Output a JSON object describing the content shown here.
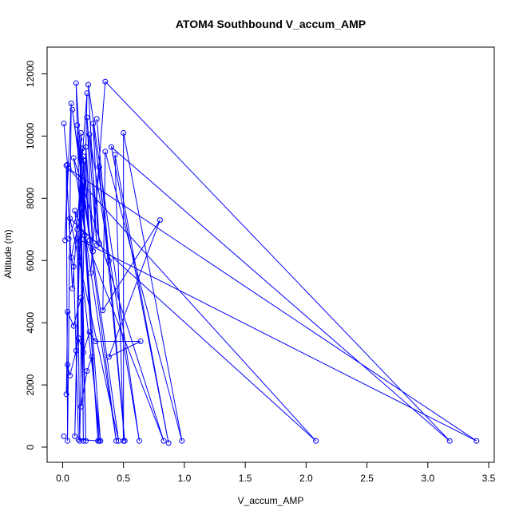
{
  "chart_data": {
    "type": "scatter",
    "title": "ATOM4 Southbound V_accum_AMP",
    "xlabel": "V_accum_AMP",
    "ylabel": "Altitude (m)",
    "xlim": [
      0,
      3.5
    ],
    "ylim": [
      0,
      12000
    ],
    "x_ticks": [
      0,
      0.5,
      1,
      1.5,
      2,
      2.5,
      3,
      3.5
    ],
    "x_tick_labels": [
      "0.0",
      "0.5",
      "1.0",
      "1.5",
      "2.0",
      "2.5",
      "3.0",
      "3.5"
    ],
    "y_ticks": [
      0,
      2000,
      4000,
      6000,
      8000,
      10000,
      12000
    ],
    "y_tick_labels": [
      "0",
      "2000",
      "4000",
      "6000",
      "8000",
      "10000",
      "12000"
    ],
    "grid": false,
    "series": [
      {
        "color": "#0000ff",
        "style": "line+points",
        "points": [
          [
            0.01,
            10400
          ],
          [
            0.02,
            6650
          ],
          [
            0.03,
            9050
          ],
          [
            0.04,
            9080
          ],
          [
            0.05,
            8950
          ],
          [
            0.06,
            7350
          ],
          [
            0.07,
            11050
          ],
          [
            0.08,
            10850
          ],
          [
            0.09,
            9300
          ],
          [
            0.1,
            7600
          ],
          [
            0.12,
            10350
          ],
          [
            0.11,
            11700
          ],
          [
            0.14,
            9900
          ],
          [
            0.15,
            10100
          ],
          [
            0.16,
            9600
          ],
          [
            0.17,
            9350
          ],
          [
            0.18,
            9200
          ],
          [
            0.19,
            9650
          ],
          [
            0.2,
            10600
          ],
          [
            0.21,
            11650
          ],
          [
            0.2,
            11380
          ],
          [
            0.22,
            10050
          ],
          [
            0.25,
            10400
          ],
          [
            0.28,
            10550
          ],
          [
            0.3,
            9000
          ],
          [
            0.35,
            11750
          ],
          [
            0.4,
            9650
          ],
          [
            0.43,
            9400
          ],
          [
            0.5,
            10100
          ],
          [
            0.35,
            9500
          ],
          [
            0.08,
            5100
          ],
          [
            0.12,
            6700
          ],
          [
            0.14,
            6500
          ],
          [
            0.18,
            6800
          ],
          [
            0.22,
            6650
          ],
          [
            0.25,
            6300
          ],
          [
            0.28,
            6500
          ],
          [
            0.3,
            6550
          ],
          [
            0.38,
            6000
          ],
          [
            0.23,
            5600
          ],
          [
            0.8,
            7300
          ],
          [
            0.64,
            3400
          ],
          [
            0.38,
            2900
          ],
          [
            0.33,
            4400
          ],
          [
            0.27,
            3400
          ],
          [
            0.22,
            3700
          ],
          [
            0.17,
            3050
          ],
          [
            0.13,
            3500
          ],
          [
            0.11,
            3100
          ],
          [
            0.06,
            2300
          ],
          [
            0.04,
            2650
          ],
          [
            0.03,
            1700
          ],
          [
            0.04,
            4350
          ],
          [
            0.09,
            3900
          ],
          [
            0.15,
            4800
          ],
          [
            0.01,
            350
          ],
          [
            0.04,
            200
          ],
          [
            0.1,
            350
          ],
          [
            0.14,
            200
          ],
          [
            0.17,
            200
          ],
          [
            0.19,
            200
          ],
          [
            0.29,
            200
          ],
          [
            0.31,
            200
          ],
          [
            0.44,
            200
          ],
          [
            0.46,
            200
          ],
          [
            0.5,
            200
          ],
          [
            0.51,
            200
          ],
          [
            0.63,
            200
          ],
          [
            0.83,
            200
          ],
          [
            0.87,
            130
          ],
          [
            0.98,
            200
          ],
          [
            2.08,
            200
          ],
          [
            3.18,
            200
          ],
          [
            3.4,
            200
          ],
          [
            0.15,
            1300
          ],
          [
            0.2,
            2450
          ],
          [
            0.24,
            2900
          ],
          [
            0.3,
            200
          ],
          [
            0.13,
            250
          ],
          [
            0.09,
            5800
          ],
          [
            0.07,
            6100
          ],
          [
            0.12,
            7000
          ],
          [
            0.16,
            7550
          ],
          [
            0.18,
            8200
          ],
          [
            0.05,
            6700
          ]
        ],
        "connect_order": [
          0,
          3,
          1,
          6,
          56,
          2,
          30,
          20,
          58,
          31,
          73,
          4,
          71,
          5,
          64,
          7,
          63,
          8,
          68,
          9,
          62,
          10,
          61,
          11,
          60,
          12,
          59,
          13,
          57,
          14,
          32,
          15,
          33,
          16,
          34,
          17,
          35,
          18,
          36,
          19,
          67,
          21,
          37,
          22,
          38,
          23,
          66,
          24,
          39,
          25,
          72,
          26,
          69,
          27,
          65,
          28,
          70,
          29,
          43,
          40,
          42,
          41,
          44,
          45,
          46,
          47,
          48,
          49,
          50,
          51,
          52,
          53,
          54,
          74,
          75,
          76,
          77,
          78,
          79,
          80,
          81,
          82,
          83,
          84
        ]
      }
    ]
  }
}
